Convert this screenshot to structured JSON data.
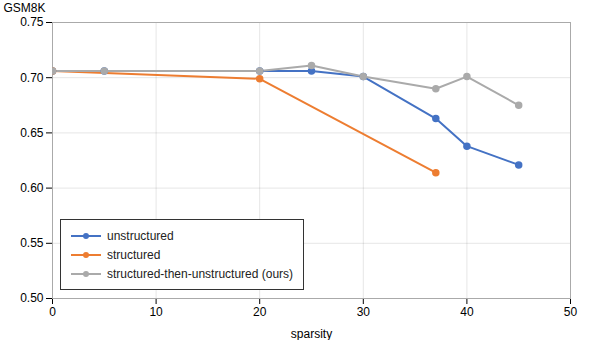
{
  "chart_data": {
    "type": "line",
    "series": [
      {
        "name": "unstructured",
        "color": "#4472C4",
        "x": [
          0,
          5,
          20,
          25,
          30,
          37,
          40,
          45
        ],
        "values": [
          0.706,
          0.706,
          0.706,
          0.706,
          0.701,
          0.663,
          0.638,
          0.621
        ]
      },
      {
        "name": "structured",
        "color": "#ED7D31",
        "x": [
          0,
          20,
          37
        ],
        "values": [
          0.706,
          0.699,
          0.614
        ]
      },
      {
        "name": "structured-then-unstructured (ours)",
        "color": "#AAAAAA",
        "x": [
          0,
          5,
          20,
          25,
          30,
          37,
          40,
          45
        ],
        "values": [
          0.706,
          0.706,
          0.706,
          0.711,
          0.701,
          0.69,
          0.701,
          0.675
        ]
      }
    ],
    "x_label": "sparsity",
    "y_label": "GSM8K",
    "xlim": [
      0,
      50
    ],
    "ylim": [
      0.5,
      0.75
    ],
    "xticks": [
      0,
      10,
      20,
      30,
      40,
      50
    ],
    "yticks": [
      {
        "value": 0.5,
        "label": "0.50"
      },
      0.55,
      {
        "value": 0.6,
        "label": "0.60"
      },
      0.65,
      {
        "value": 0.7,
        "label": "0.70"
      },
      0.75
    ],
    "grid": true,
    "legend": "lower left",
    "marker": "circle"
  }
}
